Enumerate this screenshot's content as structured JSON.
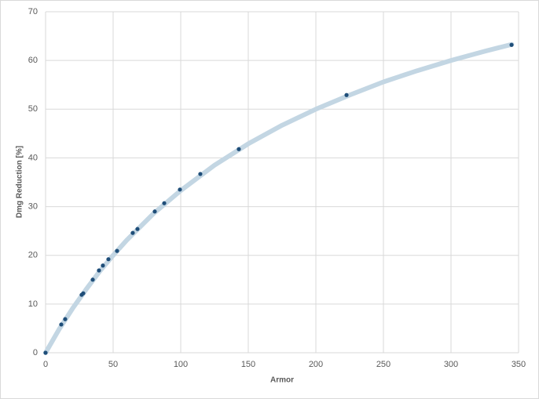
{
  "chart_data": {
    "type": "scatter",
    "x_label": "Armor",
    "y_label": "Dmg Reduction [%]",
    "xlim": [
      0,
      350
    ],
    "xticks": [
      0,
      50,
      100,
      150,
      200,
      250,
      300,
      350
    ],
    "ylim": [
      0,
      70
    ],
    "yticks": [
      0,
      10,
      20,
      30,
      40,
      50,
      60,
      70
    ],
    "grid": true,
    "series": [
      {
        "mode": "line",
        "color": "#c3d6e3",
        "x": [
          0,
          10,
          20,
          30,
          40,
          50,
          60,
          80,
          100,
          125,
          150,
          175,
          200,
          225,
          250,
          275,
          300,
          325,
          345
        ],
        "values": [
          0,
          4.8,
          9.1,
          13.0,
          16.7,
          20.0,
          23.1,
          28.6,
          33.3,
          38.5,
          42.9,
          46.7,
          50.0,
          52.9,
          55.6,
          57.9,
          60.0,
          61.9,
          63.3
        ]
      },
      {
        "mode": "markers",
        "color": "#1f4e79",
        "x": [
          0,
          11.6,
          14.5,
          26.7,
          27.9,
          34.9,
          39.5,
          42.4,
          46.5,
          52.9,
          64.5,
          68,
          80.8,
          87.8,
          99.4,
          114.5,
          143,
          222.7,
          344.8
        ],
        "values": [
          0,
          5.8,
          6.9,
          11.9,
          12.2,
          15.0,
          16.9,
          17.9,
          19.2,
          20.9,
          24.6,
          25.4,
          29.0,
          30.7,
          33.5,
          36.7,
          41.8,
          52.9,
          63.2
        ]
      }
    ]
  }
}
